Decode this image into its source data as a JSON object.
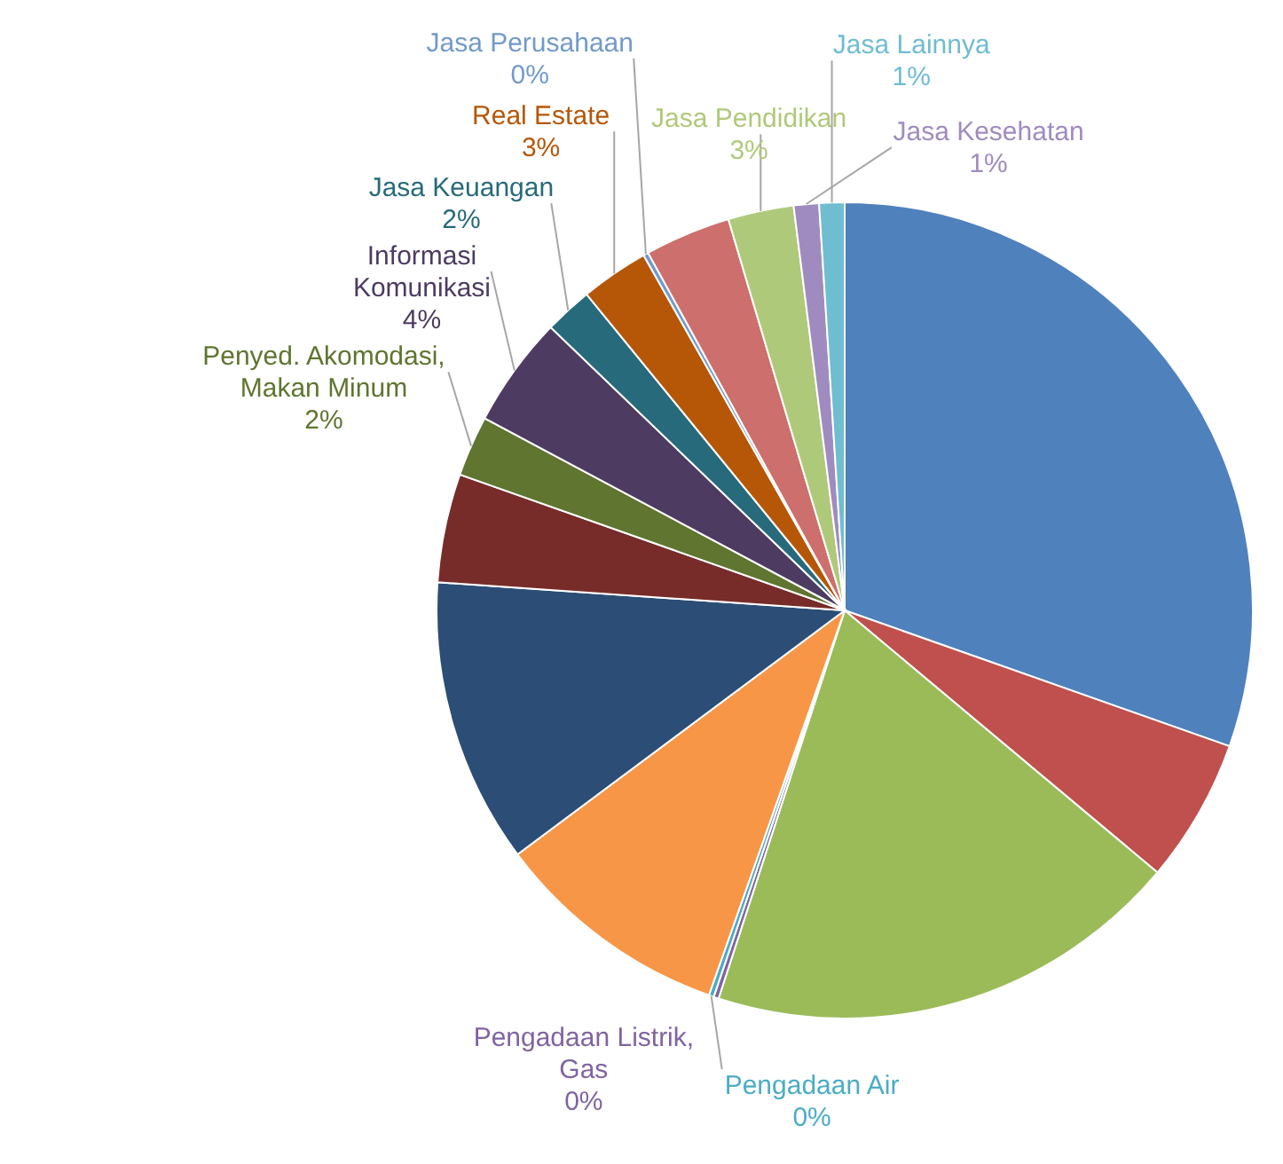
{
  "chart_data": {
    "type": "pie",
    "categories": [
      null,
      null,
      null,
      "Pengadaan Listrik, Gas",
      "Pengadaan Air",
      null,
      null,
      null,
      "Penyed. Akomodasi, Makan Minum",
      "Informasi Komunikasi",
      "Jasa Keuangan",
      "Real Estate",
      "Jasa Perusahaan",
      null,
      "Jasa Pendidikan",
      "Jasa Kesehatan",
      "Jasa Lainnya"
    ],
    "values": [
      30.4,
      5.7,
      18.9,
      0.2,
      0.2,
      9.4,
      11.3,
      4.3,
      2.4,
      4.4,
      1.9,
      2.7,
      0.2,
      3.4,
      2.6,
      1.0,
      1.0
    ],
    "value_labels": [
      null,
      null,
      null,
      "0%",
      "0%",
      null,
      null,
      null,
      "2%",
      "4%",
      "2%",
      "3%",
      "0%",
      null,
      "3%",
      "1%",
      "1%"
    ],
    "colors": [
      "#4f81bd",
      "#c0504d",
      "#9bbb59",
      "#8064a2",
      "#4bacc6",
      "#f79646",
      "#2c4d75",
      "#772c2a",
      "#5f7530",
      "#4d3b62",
      "#276a7c",
      "#b65708",
      "#729aca",
      "#cd6f6c",
      "#afc97a",
      "#a08bc0",
      "#6fbdd1"
    ]
  }
}
